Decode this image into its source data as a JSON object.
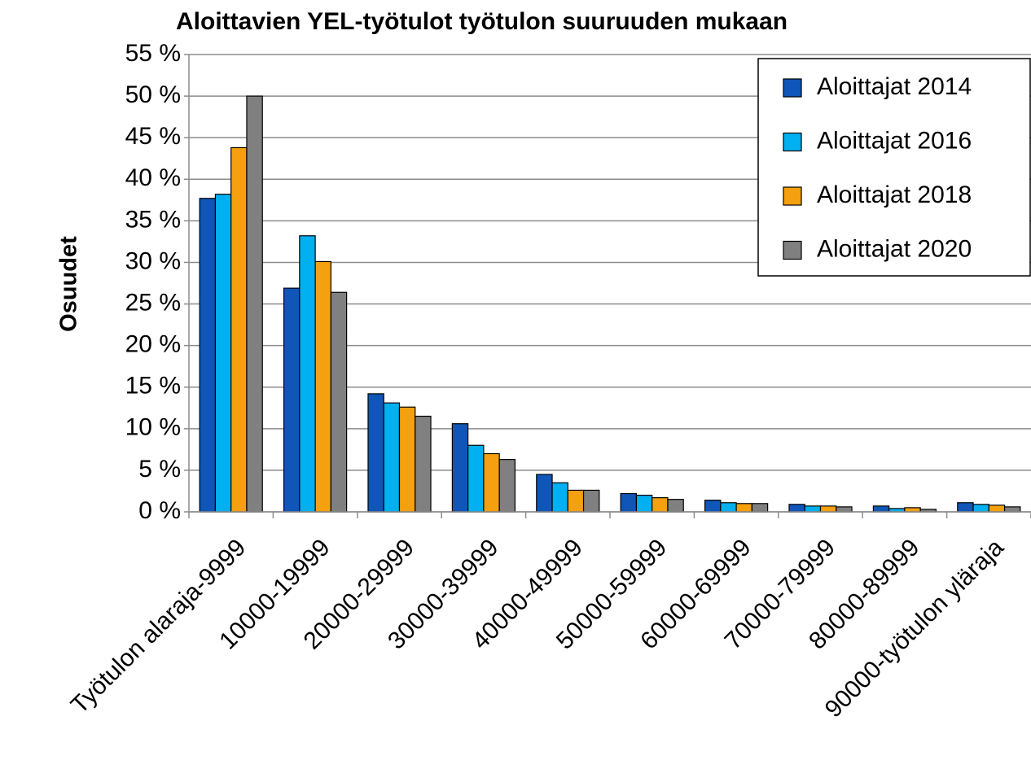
{
  "chart_data": {
    "type": "bar",
    "title": "Aloittavien YEL-työtulot työtulon suuruuden mukaan",
    "y_label": "Osuudet",
    "categories": [
      "Työtulon alaraja-9999",
      "10000-19999",
      "20000-29999",
      "30000-39999",
      "40000-49999",
      "50000-59999",
      "60000-69999",
      "70000-79999",
      "80000-89999",
      "90000-työtulon yläraja"
    ],
    "series": [
      {
        "name": "Aloittajat 2014",
        "color": "#0f56b8",
        "values": [
          37.7,
          26.9,
          14.2,
          10.6,
          4.5,
          2.2,
          1.4,
          0.9,
          0.7,
          1.1
        ]
      },
      {
        "name": "Aloittajat 2016",
        "color": "#00b0f0",
        "values": [
          38.2,
          33.2,
          13.1,
          8.0,
          3.5,
          2.0,
          1.1,
          0.7,
          0.4,
          0.9
        ]
      },
      {
        "name": "Aloittajat 2018",
        "color": "#f5a00f",
        "values": [
          43.8,
          30.1,
          12.6,
          7.0,
          2.6,
          1.7,
          1.0,
          0.7,
          0.5,
          0.8
        ]
      },
      {
        "name": "Aloittajat 2020",
        "color": "#808080",
        "values": [
          50.0,
          26.4,
          11.5,
          6.3,
          2.6,
          1.5,
          1.0,
          0.6,
          0.3,
          0.6
        ]
      }
    ],
    "ylim": [
      0,
      55
    ],
    "yticks": [
      {
        "value": 0,
        "label": "0 %"
      },
      {
        "value": 5,
        "label": "5 %"
      },
      {
        "value": 10,
        "label": "10 %"
      },
      {
        "value": 15,
        "label": "15 %"
      },
      {
        "value": 20,
        "label": "20 %"
      },
      {
        "value": 25,
        "label": "25 %"
      },
      {
        "value": 30,
        "label": "30 %"
      },
      {
        "value": 35,
        "label": "35 %"
      },
      {
        "value": 40,
        "label": "40 %"
      },
      {
        "value": 45,
        "label": "45 %"
      },
      {
        "value": 50,
        "label": "50 %"
      },
      {
        "value": 55,
        "label": "55 %"
      }
    ],
    "grid": true,
    "legend": "upper right"
  }
}
